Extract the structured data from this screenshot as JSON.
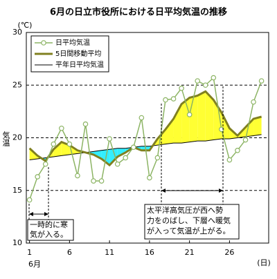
{
  "chart_data": {
    "type": "line",
    "title": "6月の日立市役所における日平均気温の推移",
    "y_unit": "(℃)",
    "ylabel": "気温",
    "x_unit": "(日)",
    "month_label": "6月",
    "x": [
      1,
      2,
      3,
      4,
      5,
      6,
      7,
      8,
      9,
      10,
      11,
      12,
      13,
      14,
      15,
      16,
      17,
      18,
      19,
      20,
      21,
      22,
      23,
      24,
      25,
      26,
      27,
      28,
      29,
      30
    ],
    "xlim": [
      0.6,
      30.9
    ],
    "xticks": [
      1,
      6,
      11,
      16,
      21,
      26
    ],
    "ylim": [
      10,
      30
    ],
    "yticks": [
      10,
      15,
      20,
      25,
      30
    ],
    "grid": true,
    "series": [
      {
        "name": "日平均気温",
        "color": "#8cb464",
        "values": [
          14.1,
          16.3,
          17.5,
          19.4,
          20.9,
          19.4,
          16.4,
          21.3,
          15.9,
          15.9,
          19.9,
          17.5,
          18.1,
          19.1,
          21.9,
          16.2,
          18.1,
          23.6,
          23.7,
          24.7,
          22.2,
          25.4,
          25.0,
          25.7,
          20.8,
          17.9,
          18.8,
          19.8,
          23.4,
          25.4
        ]
      },
      {
        "name": "5日間移動平均",
        "color": "#808020",
        "values": [
          19.0,
          18.3,
          17.8,
          18.9,
          19.6,
          19.3,
          18.8,
          18.6,
          18.4,
          18.0,
          17.4,
          18.2,
          18.6,
          19.1,
          18.8,
          18.8,
          19.9,
          20.8,
          21.8,
          23.2,
          23.8,
          24.0,
          24.4,
          23.6,
          22.4,
          20.9,
          20.2,
          21.0,
          21.8,
          22.0
        ]
      },
      {
        "name": "平年日平均気温",
        "color": "#000000",
        "values": [
          17.9,
          18.0,
          18.1,
          18.2,
          18.3,
          18.4,
          18.5,
          18.6,
          18.7,
          18.8,
          18.9,
          19.0,
          19.0,
          19.1,
          19.2,
          19.2,
          19.3,
          19.4,
          19.5,
          19.5,
          19.6,
          19.7,
          19.7,
          19.8,
          19.9,
          19.9,
          20.0,
          20.1,
          20.2,
          20.3
        ]
      }
    ],
    "fill_colors": {
      "above": "#ffff33",
      "below": "#33eeff"
    },
    "annotations": [
      {
        "lines": [
          "一時的に寒",
          "気が入る。"
        ]
      },
      {
        "lines": [
          "太平洋高気圧が西へ勢",
          "力をのばし、下層へ暖気",
          "が入って気温が上がる。"
        ]
      }
    ]
  }
}
